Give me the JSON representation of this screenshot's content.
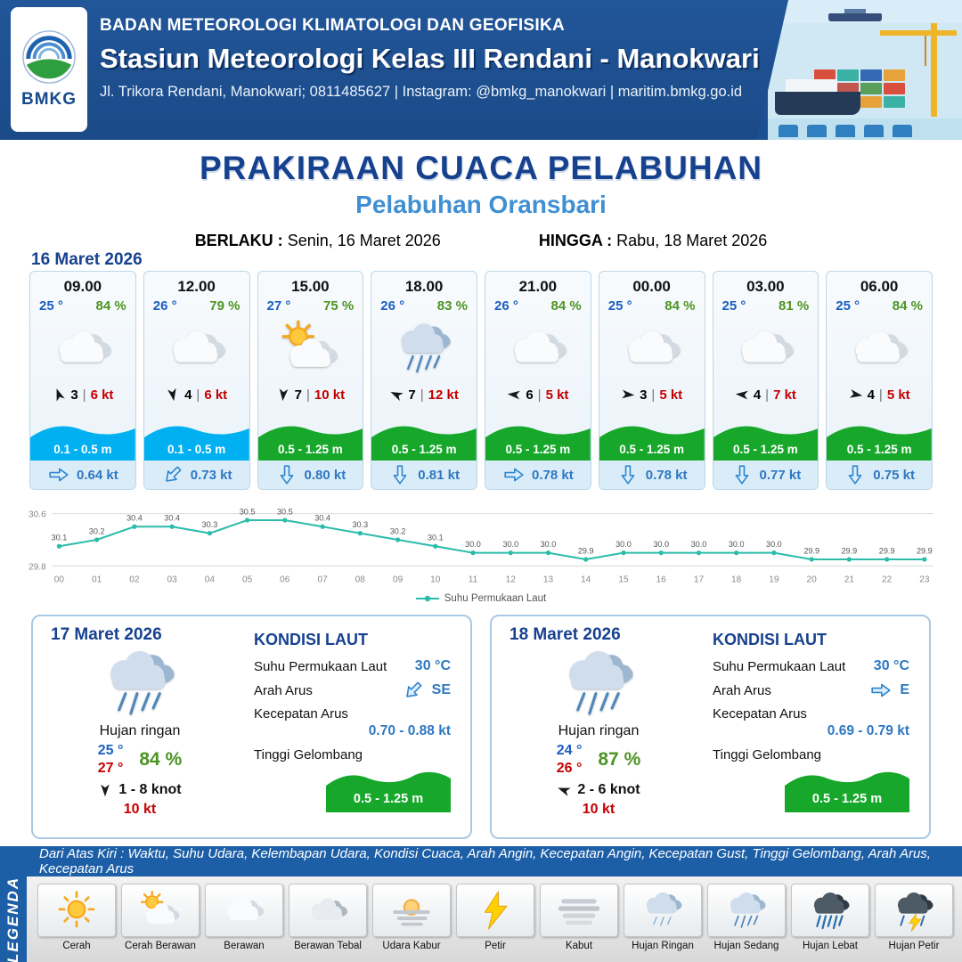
{
  "header": {
    "logo_text": "BMKG",
    "org_name": "BADAN METEOROLOGI KLIMATOLOGI DAN GEOFISIKA",
    "station_name": "Stasiun Meteorologi Kelas III Rendani - Manokwari",
    "contact_line": "Jl. Trikora Rendani, Manokwari; 0811485627 | Instagram: @bmkg_manokwari | maritim.bmkg.go.id"
  },
  "title_block": {
    "main_title": "PRAKIRAAN CUACA PELABUHAN",
    "subtitle": "Pelabuhan Oransbari",
    "valid_from_label": "BERLAKU :",
    "valid_from": "Senin, 16 Maret 2026",
    "valid_to_label": "HINGGA :",
    "valid_to": "Rabu, 18 Maret 2026"
  },
  "forecast_date": "16 Maret 2026",
  "ui": {
    "pipe": "|"
  },
  "forecast_cards": [
    {
      "time": "09.00",
      "temp": "25 °",
      "humidity": "84 %",
      "weather_icon": "cloudy",
      "wind_speed": "3",
      "gust": "6 kt",
      "wind_dir_deg": -20,
      "wave_height": "0.1 - 0.5 m",
      "wave_color": "cyan",
      "current_dir_deg": 0,
      "current_speed": "0.64 kt"
    },
    {
      "time": "12.00",
      "temp": "26 °",
      "humidity": "79 %",
      "weather_icon": "cloudy",
      "wind_speed": "4",
      "gust": "6 kt",
      "wind_dir_deg": 170,
      "wave_height": "0.1 - 0.5 m",
      "wave_color": "cyan",
      "current_dir_deg": 135,
      "current_speed": "0.73 kt"
    },
    {
      "time": "15.00",
      "temp": "27 °",
      "humidity": "75 %",
      "weather_icon": "partly-cloudy",
      "wind_speed": "7",
      "gust": "10 kt",
      "wind_dir_deg": 185,
      "wave_height": "0.5 - 1.25 m",
      "wave_color": "green",
      "current_dir_deg": 90,
      "current_speed": "0.80 kt"
    },
    {
      "time": "18.00",
      "temp": "26 °",
      "humidity": "83 %",
      "weather_icon": "rain",
      "wind_speed": "7",
      "gust": "12 kt",
      "wind_dir_deg": -65,
      "wave_height": "0.5 - 1.25 m",
      "wave_color": "green",
      "current_dir_deg": 90,
      "current_speed": "0.81 kt"
    },
    {
      "time": "21.00",
      "temp": "26 °",
      "humidity": "84 %",
      "weather_icon": "cloudy",
      "wind_speed": "6",
      "gust": "5 kt",
      "wind_dir_deg": -85,
      "wave_height": "0.5 - 1.25 m",
      "wave_color": "green",
      "current_dir_deg": 0,
      "current_speed": "0.78 kt"
    },
    {
      "time": "00.00",
      "temp": "25 °",
      "humidity": "84 %",
      "weather_icon": "cloudy",
      "wind_speed": "3",
      "gust": "5 kt",
      "wind_dir_deg": 95,
      "wave_height": "0.5 - 1.25 m",
      "wave_color": "green",
      "current_dir_deg": 90,
      "current_speed": "0.78 kt"
    },
    {
      "time": "03.00",
      "temp": "25 °",
      "humidity": "81 %",
      "weather_icon": "cloudy",
      "wind_speed": "4",
      "gust": "7 kt",
      "wind_dir_deg": -85,
      "wave_height": "0.5 - 1.25 m",
      "wave_color": "green",
      "current_dir_deg": 90,
      "current_speed": "0.77 kt"
    },
    {
      "time": "06.00",
      "temp": "25 °",
      "humidity": "84 %",
      "weather_icon": "cloudy",
      "wind_speed": "4",
      "gust": "5 kt",
      "wind_dir_deg": 100,
      "wave_height": "0.5 - 1.25 m",
      "wave_color": "green",
      "current_dir_deg": 90,
      "current_speed": "0.75 kt"
    }
  ],
  "chart_data": {
    "type": "line",
    "series_name": "Suhu Permukaan Laut",
    "x": [
      "00",
      "01",
      "02",
      "03",
      "04",
      "05",
      "06",
      "07",
      "08",
      "09",
      "10",
      "11",
      "12",
      "13",
      "14",
      "15",
      "16",
      "17",
      "18",
      "19",
      "20",
      "21",
      "22",
      "23"
    ],
    "values": [
      30.1,
      30.2,
      30.4,
      30.4,
      30.3,
      30.5,
      30.5,
      30.4,
      30.3,
      30.2,
      30.1,
      30.0,
      30.0,
      30.0,
      29.9,
      30.0,
      30.0,
      30.0,
      30.0,
      30.0,
      29.9,
      29.9,
      29.9,
      29.9
    ],
    "ylim": [
      29.8,
      30.6
    ],
    "y_ticks": [
      "30.6",
      "29.8"
    ],
    "line_color": "#2bbcab",
    "grid": true,
    "legend_position": "bottom"
  },
  "day_cards": [
    {
      "date": "17 Maret 2026",
      "weather_icon": "rain",
      "weather_desc": "Hujan ringan",
      "temp_min": "25 °",
      "temp_max": "27 °",
      "humidity": "84 %",
      "wind_range": "1 - 8 knot",
      "wind_dir_deg": 180,
      "gust": "10 kt",
      "sea": {
        "heading": "KONDISI LAUT",
        "sst_label": "Suhu Permukaan Laut",
        "sst_value": "30 °C",
        "current_dir_label": "Arah Arus",
        "current_dir_text": "SE",
        "current_dir_deg": 135,
        "current_speed_label": "Kecepatan Arus",
        "current_speed_value": "0.70 - 0.88 kt",
        "wave_label": "Tinggi Gelombang",
        "wave_value": "0.5 - 1.25 m"
      }
    },
    {
      "date": "18 Maret 2026",
      "weather_icon": "rain",
      "weather_desc": "Hujan ringan",
      "temp_min": "24 °",
      "temp_max": "26 °",
      "humidity": "87 %",
      "wind_range": "2 - 6 knot",
      "wind_dir_deg": -70,
      "gust": "10 kt",
      "sea": {
        "heading": "KONDISI LAUT",
        "sst_label": "Suhu Permukaan Laut",
        "sst_value": "30 °C",
        "current_dir_label": "Arah Arus",
        "current_dir_text": "E",
        "current_dir_deg": 0,
        "current_speed_label": "Kecepatan Arus",
        "current_speed_value": "0.69 - 0.79 kt",
        "wave_label": "Tinggi Gelombang",
        "wave_value": "0.5 - 1.25 m"
      }
    }
  ],
  "legend": {
    "vertical_label": "LEGENDA",
    "info_text": "Dari Atas Kiri : Waktu, Suhu Udara, Kelembapan Udara, Kondisi Cuaca, Arah Angin, Kecepatan Angin, Kecepatan Gust, Tinggi Gelombang, Arah Arus, Kecepatan Arus",
    "items": [
      {
        "label": "Cerah",
        "icon": "sun"
      },
      {
        "label": "Cerah Berawan",
        "icon": "sun-cloud"
      },
      {
        "label": "Berawan",
        "icon": "cloud"
      },
      {
        "label": "Berawan Tebal",
        "icon": "cloud-thick"
      },
      {
        "label": "Udara Kabur",
        "icon": "haze"
      },
      {
        "label": "Petir",
        "icon": "lightning"
      },
      {
        "label": "Kabut",
        "icon": "fog"
      },
      {
        "label": "Hujan Ringan",
        "icon": "rain-light"
      },
      {
        "label": "Hujan Sedang",
        "icon": "rain-medium"
      },
      {
        "label": "Hujan Lebat",
        "icon": "rain-heavy"
      },
      {
        "label": "Hujan Petir",
        "icon": "rain-thunder"
      }
    ]
  },
  "colors": {
    "header_blue": "#1d5093",
    "title_blue": "#16418f",
    "subtitle_blue": "#3f8fd2",
    "temp_blue": "#1b5fc0",
    "humidity_green": "#4c9423",
    "gust_red": "#c40000",
    "wave_cyan": "#00b0f0",
    "wave_green": "#17a82b",
    "legend_bar_blue": "#1d5fa7"
  }
}
